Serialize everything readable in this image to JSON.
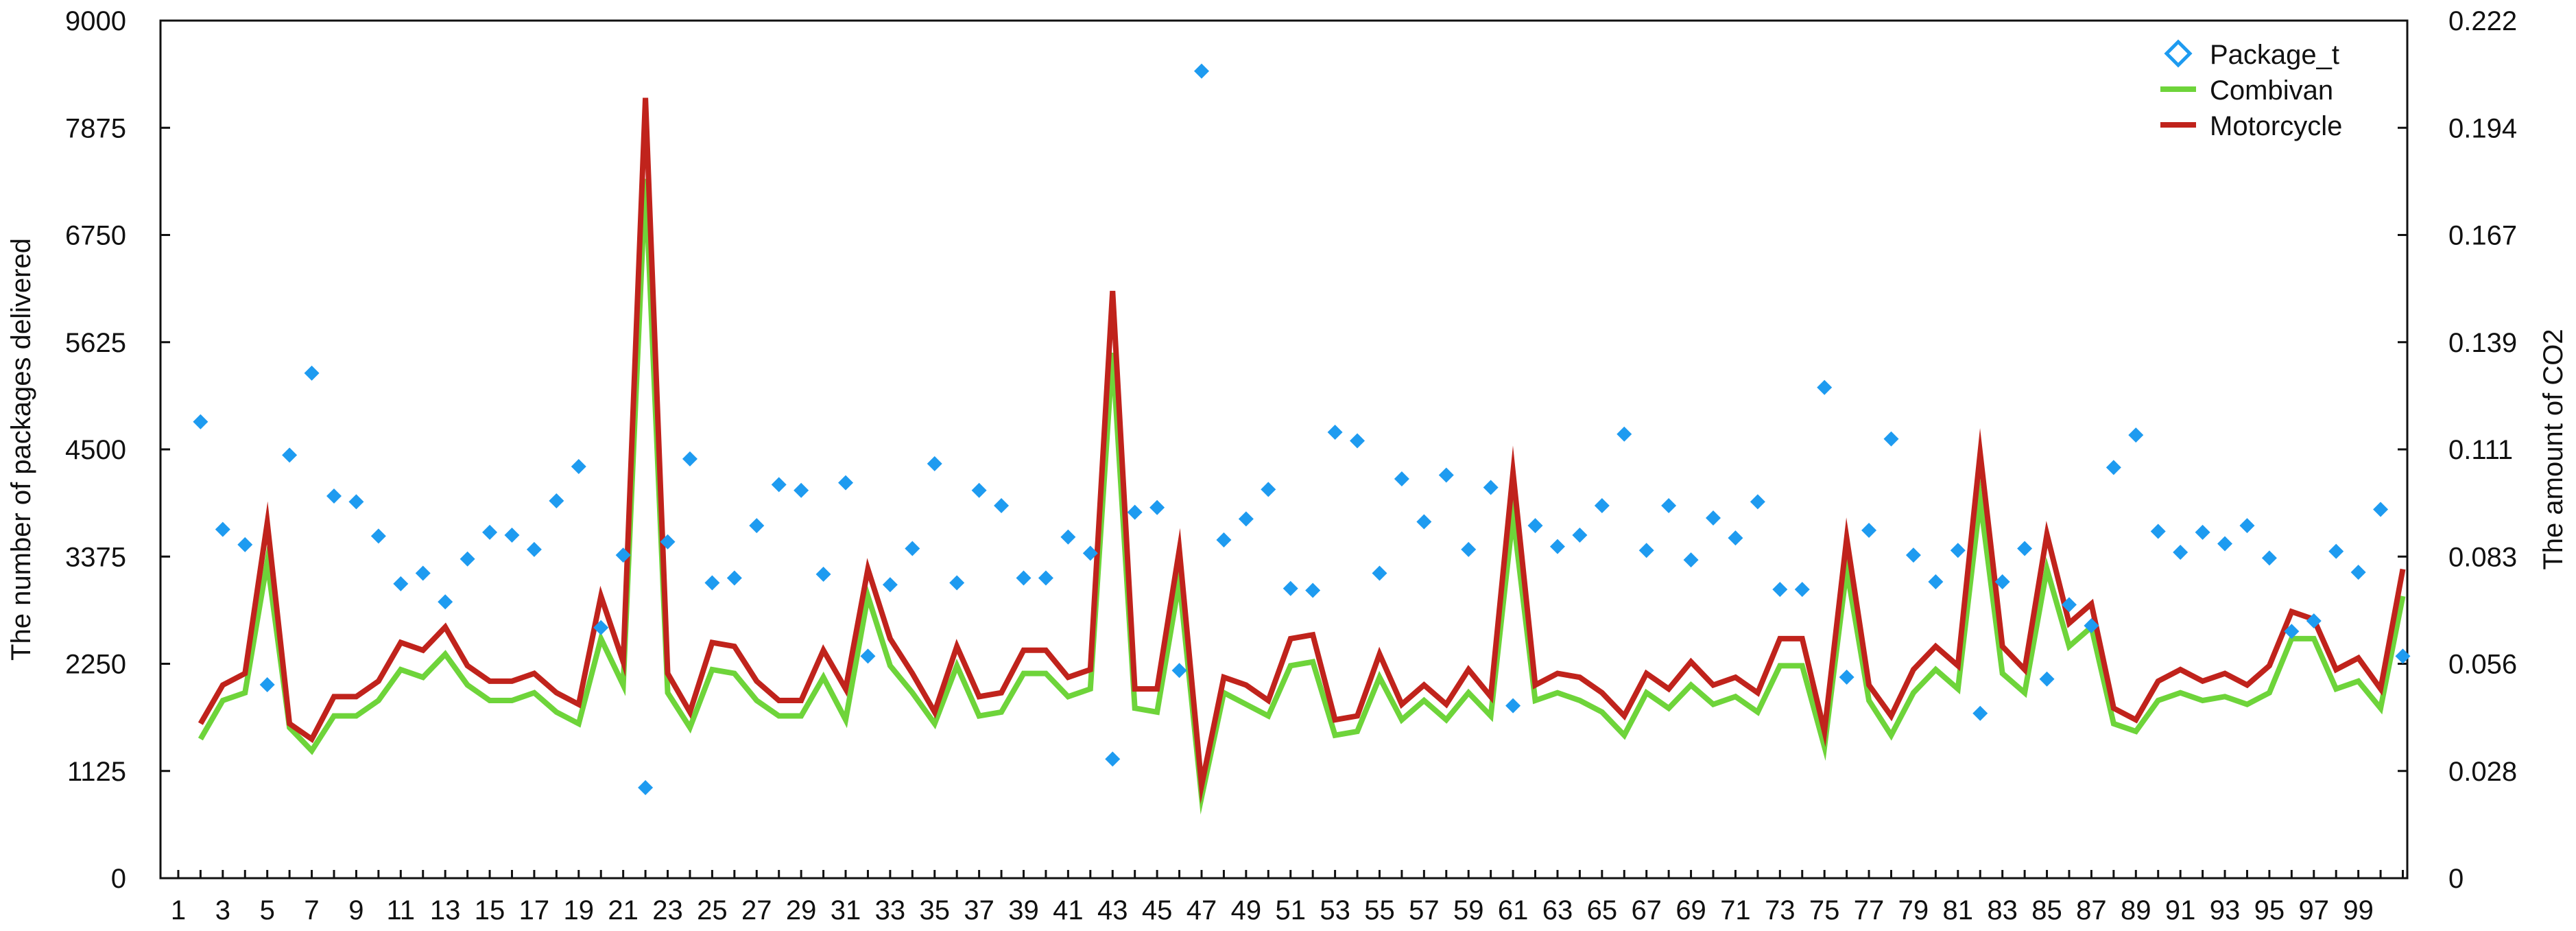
{
  "chart_data": {
    "type": "line",
    "title": "",
    "xlabel": "",
    "ylabel": "The number of packages delivered",
    "y2label": "The amount of CO2",
    "xlim": [
      1,
      100
    ],
    "ylim": [
      0,
      9000
    ],
    "y2lim": [
      0,
      0.222
    ],
    "y_ticks": [
      "0",
      "1125",
      "2250",
      "3375",
      "4500",
      "5625",
      "6750",
      "7875",
      "9000"
    ],
    "y2_ticks": [
      "0",
      "0.028",
      "0.056",
      "0.083",
      "0.111",
      "0.139",
      "0.167",
      "0.194",
      "0.222"
    ],
    "x_tick_labels": [
      "1",
      "3",
      "5",
      "7",
      "9",
      "11",
      "13",
      "15",
      "17",
      "19",
      "21",
      "23",
      "25",
      "27",
      "29",
      "31",
      "33",
      "35",
      "37",
      "39",
      "41",
      "43",
      "45",
      "47",
      "49",
      "51",
      "53",
      "55",
      "57",
      "59",
      "61",
      "63",
      "65",
      "67",
      "69",
      "71",
      "73",
      "75",
      "77",
      "79",
      "81",
      "83",
      "85",
      "87",
      "89",
      "91",
      "93",
      "95",
      "97",
      "99"
    ],
    "grid": false,
    "legend_position": "top-right",
    "x": [
      2,
      3,
      4,
      5,
      6,
      7,
      8,
      9,
      10,
      11,
      12,
      13,
      14,
      15,
      16,
      17,
      18,
      19,
      20,
      21,
      22,
      23,
      24,
      25,
      26,
      27,
      28,
      29,
      30,
      31,
      32,
      33,
      34,
      35,
      36,
      37,
      38,
      39,
      40,
      41,
      42,
      43,
      44,
      45,
      46,
      47,
      48,
      49,
      50,
      51,
      52,
      53,
      54,
      55,
      56,
      57,
      58,
      59,
      60,
      61,
      62,
      63,
      64,
      65,
      66,
      67,
      68,
      69,
      70,
      71,
      72,
      73,
      74,
      75,
      76,
      77,
      78,
      79,
      80,
      81,
      82,
      83,
      84,
      85,
      86,
      87,
      88,
      89,
      90,
      91,
      92,
      93,
      94,
      95,
      96,
      97,
      98,
      99,
      100,
      101
    ],
    "series": [
      {
        "name": "Package_t",
        "type": "scatter",
        "axis": "left",
        "color": "#1e9bf0",
        "marker": "diamond",
        "values": [
          4790,
          3660,
          3500,
          2030,
          4440,
          5300,
          4010,
          3950,
          3590,
          3090,
          3200,
          2900,
          3350,
          3630,
          3600,
          3450,
          3960,
          4320,
          2630,
          3390,
          950,
          3530,
          4400,
          3100,
          3150,
          3700,
          4130,
          4070,
          3190,
          4150,
          2330,
          3080,
          3460,
          4350,
          3100,
          4070,
          3910,
          3150,
          3150,
          3580,
          3410,
          1250,
          3840,
          3890,
          2180,
          8470,
          3550,
          3770,
          4080,
          3040,
          3020,
          4680,
          4590,
          3200,
          4190,
          3740,
          4230,
          3450,
          4100,
          1810,
          3700,
          3480,
          3600,
          3910,
          4660,
          3440,
          3910,
          3340,
          3780,
          3570,
          3950,
          3030,
          3030,
          5150,
          2110,
          3650,
          4610,
          3390,
          3110,
          3440,
          1730,
          3110,
          3460,
          2090,
          2870,
          2650,
          4310,
          4650,
          3640,
          3420,
          3630,
          3510,
          3700,
          3360,
          2590,
          2700,
          3430,
          3210,
          3870,
          2330
        ]
      },
      {
        "name": "Combivan",
        "type": "line",
        "axis": "right",
        "color": "#6ed43a",
        "values": [
          0.036,
          0.046,
          0.048,
          0.082,
          0.039,
          0.033,
          0.042,
          0.042,
          0.046,
          0.054,
          0.052,
          0.058,
          0.05,
          0.046,
          0.046,
          0.048,
          0.043,
          0.04,
          0.062,
          0.05,
          0.181,
          0.048,
          0.039,
          0.054,
          0.053,
          0.046,
          0.042,
          0.042,
          0.052,
          0.041,
          0.073,
          0.055,
          0.048,
          0.04,
          0.055,
          0.042,
          0.043,
          0.053,
          0.053,
          0.047,
          0.049,
          0.136,
          0.044,
          0.043,
          0.077,
          0.021,
          0.048,
          0.045,
          0.042,
          0.055,
          0.056,
          0.037,
          0.038,
          0.052,
          0.041,
          0.046,
          0.041,
          0.048,
          0.042,
          0.094,
          0.046,
          0.048,
          0.046,
          0.043,
          0.037,
          0.048,
          0.044,
          0.05,
          0.045,
          0.047,
          0.043,
          0.055,
          0.055,
          0.034,
          0.08,
          0.046,
          0.037,
          0.048,
          0.054,
          0.049,
          0.098,
          0.053,
          0.048,
          0.08,
          0.06,
          0.065,
          0.04,
          0.038,
          0.046,
          0.048,
          0.046,
          0.047,
          0.045,
          0.048,
          0.062,
          0.062,
          0.049,
          0.051,
          0.044,
          0.073
        ]
      },
      {
        "name": "Motorcycle",
        "type": "line",
        "axis": "right",
        "color": "#c0231c",
        "values": [
          0.04,
          0.05,
          0.053,
          0.092,
          0.04,
          0.036,
          0.047,
          0.047,
          0.051,
          0.061,
          0.059,
          0.065,
          0.055,
          0.051,
          0.051,
          0.053,
          0.048,
          0.045,
          0.073,
          0.056,
          0.202,
          0.053,
          0.043,
          0.061,
          0.06,
          0.051,
          0.046,
          0.046,
          0.059,
          0.049,
          0.08,
          0.062,
          0.053,
          0.043,
          0.06,
          0.047,
          0.048,
          0.059,
          0.059,
          0.052,
          0.054,
          0.152,
          0.049,
          0.049,
          0.085,
          0.024,
          0.052,
          0.05,
          0.046,
          0.062,
          0.063,
          0.041,
          0.042,
          0.058,
          0.045,
          0.05,
          0.045,
          0.054,
          0.047,
          0.105,
          0.05,
          0.053,
          0.052,
          0.048,
          0.042,
          0.053,
          0.049,
          0.056,
          0.05,
          0.052,
          0.048,
          0.062,
          0.062,
          0.038,
          0.088,
          0.05,
          0.042,
          0.054,
          0.06,
          0.055,
          0.11,
          0.06,
          0.054,
          0.089,
          0.066,
          0.071,
          0.044,
          0.041,
          0.051,
          0.054,
          0.051,
          0.053,
          0.05,
          0.055,
          0.069,
          0.067,
          0.054,
          0.057,
          0.049,
          0.08
        ]
      }
    ]
  }
}
